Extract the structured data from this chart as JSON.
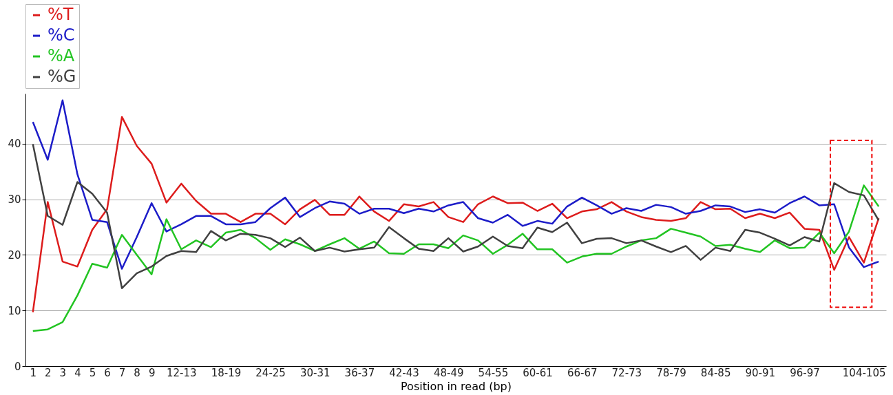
{
  "chart_data": {
    "type": "line",
    "xlabel": "Position in read (bp)",
    "categories": [
      "1",
      "2",
      "3",
      "4",
      "5",
      "6",
      "7",
      "8",
      "9",
      null,
      "12-13",
      null,
      null,
      "18-19",
      null,
      null,
      "24-25",
      null,
      null,
      "30-31",
      null,
      null,
      "36-37",
      null,
      null,
      "42-43",
      null,
      null,
      "48-49",
      null,
      null,
      "54-55",
      null,
      null,
      "60-61",
      null,
      null,
      "66-67",
      null,
      null,
      "72-73",
      null,
      null,
      "78-79",
      null,
      null,
      "84-85",
      null,
      null,
      "90-91",
      null,
      null,
      "96-97",
      null,
      null,
      null,
      "104-105",
      null
    ],
    "series": [
      {
        "name": "%T",
        "color": "#dd1c1c",
        "values": [
          9.7,
          29.5,
          18.8,
          17.9,
          24.5,
          28.2,
          44.8,
          39.6,
          36.4,
          29.4,
          32.8,
          29.7,
          27.4,
          27.4,
          25.9,
          27.4,
          27.4,
          25.5,
          28.2,
          29.9,
          27.2,
          27.2,
          30.5,
          27.8,
          26.1,
          29.1,
          28.7,
          29.5,
          26.8,
          25.9,
          29.1,
          30.5,
          29.3,
          29.4,
          27.9,
          29.2,
          26.6,
          27.8,
          28.2,
          29.5,
          27.8,
          26.8,
          26.3,
          26.1,
          26.6,
          29.5,
          28.2,
          28.3,
          26.6,
          27.4,
          26.6,
          27.6,
          24.7,
          24.5,
          17.3,
          23.2,
          18.6,
          26.6
        ]
      },
      {
        "name": "%C",
        "color": "#1c1cc8",
        "values": [
          43.9,
          37.1,
          47.8,
          34.5,
          26.3,
          25.9,
          17.5,
          23.2,
          29.3,
          24.2,
          25.5,
          27.0,
          27.0,
          25.5,
          25.5,
          25.9,
          28.4,
          30.3,
          26.8,
          28.4,
          29.6,
          29.2,
          27.4,
          28.3,
          28.3,
          27.5,
          28.3,
          27.8,
          28.9,
          29.5,
          26.6,
          25.8,
          27.2,
          25.2,
          26.1,
          25.6,
          28.7,
          30.3,
          28.9,
          27.4,
          28.4,
          27.9,
          29.0,
          28.6,
          27.4,
          27.9,
          28.9,
          28.7,
          27.7,
          28.2,
          27.6,
          29.3,
          30.5,
          28.9,
          29.1,
          21.3,
          17.8,
          18.8
        ]
      },
      {
        "name": "%A",
        "color": "#22c422",
        "values": [
          6.3,
          6.6,
          7.9,
          12.7,
          18.4,
          17.7,
          23.6,
          20.0,
          16.5,
          26.4,
          21.0,
          22.6,
          21.4,
          24.0,
          24.5,
          23.0,
          20.9,
          22.8,
          21.9,
          20.7,
          21.9,
          23.0,
          21.1,
          22.4,
          20.3,
          20.2,
          21.9,
          21.9,
          21.2,
          23.5,
          22.6,
          20.2,
          21.8,
          23.8,
          21.0,
          21.0,
          18.6,
          19.7,
          20.2,
          20.2,
          21.5,
          22.6,
          23.0,
          24.7,
          24.0,
          23.3,
          21.6,
          21.8,
          21.1,
          20.5,
          22.6,
          21.2,
          21.3,
          24.0,
          20.3,
          24.2,
          32.5,
          28.7
        ]
      },
      {
        "name": "%G",
        "color": "#404040",
        "values": [
          39.9,
          27.0,
          25.4,
          33.1,
          31.0,
          27.6,
          14.0,
          16.7,
          17.9,
          19.8,
          20.7,
          20.5,
          24.3,
          22.6,
          23.8,
          23.6,
          23.0,
          21.4,
          23.1,
          20.7,
          21.3,
          20.6,
          21.0,
          21.3,
          25.0,
          23.0,
          21.1,
          20.7,
          23.0,
          20.6,
          21.5,
          23.3,
          21.6,
          21.2,
          24.9,
          24.1,
          25.8,
          22.1,
          22.9,
          23.0,
          22.1,
          22.6,
          21.5,
          20.5,
          21.6,
          19.1,
          21.3,
          20.7,
          24.5,
          24.0,
          22.9,
          21.7,
          23.2,
          22.4,
          32.9,
          31.3,
          30.7,
          26.2
        ]
      }
    ],
    "ylim": [
      0,
      49
    ],
    "yticks": [
      0,
      10,
      20,
      30,
      40
    ],
    "grid": "y",
    "legend": "top left"
  }
}
